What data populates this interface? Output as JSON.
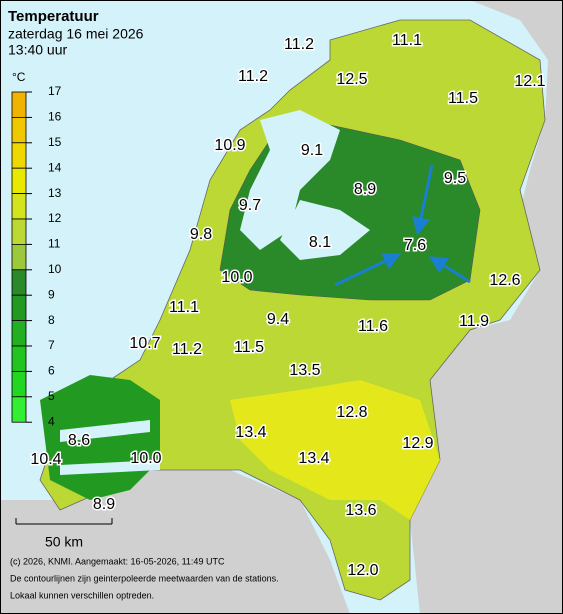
{
  "header": {
    "title": "Temperatuur",
    "date": "zaterdag 16 mei 2026",
    "time": "13:40 uur"
  },
  "legend": {
    "unit": "°C",
    "ticks": [
      17,
      16,
      15,
      14,
      13,
      12,
      11,
      10,
      9,
      8,
      7,
      6,
      5,
      4
    ],
    "colors": [
      "#f0b400",
      "#f0c800",
      "#eed800",
      "#e8e800",
      "#d4e41c",
      "#bcd834",
      "#9cc83c",
      "#2a8a2a",
      "#229a22",
      "#22b022",
      "#22c422",
      "#22d622",
      "#33ee33"
    ]
  },
  "stations": [
    "11.2",
    "11.1",
    "11.2",
    "12.5",
    "12.1",
    "11.5",
    "10.9",
    "9.1",
    "8.9",
    "9.5",
    "9.7",
    "9.8",
    "8.1",
    "7.6",
    "12.6",
    "10.0",
    "11.1",
    "9.4",
    "11.6",
    "11.9",
    "10.7",
    "11.2",
    "11.5",
    "13.5",
    "12.8",
    "13.4",
    "8.6",
    "13.4",
    "12.9",
    "10.4",
    "10.0",
    "8.9",
    "13.6",
    "12.0"
  ],
  "scale": "50 km",
  "footer": [
    "(c) 2026, KNMI. Aangemaakt: 16-05-2026, 11:49 UTC",
    "De contourlijnen zijn geinterpoleerde meetwaarden van de stations.",
    "Lokaal kunnen verschillen optreden."
  ]
}
